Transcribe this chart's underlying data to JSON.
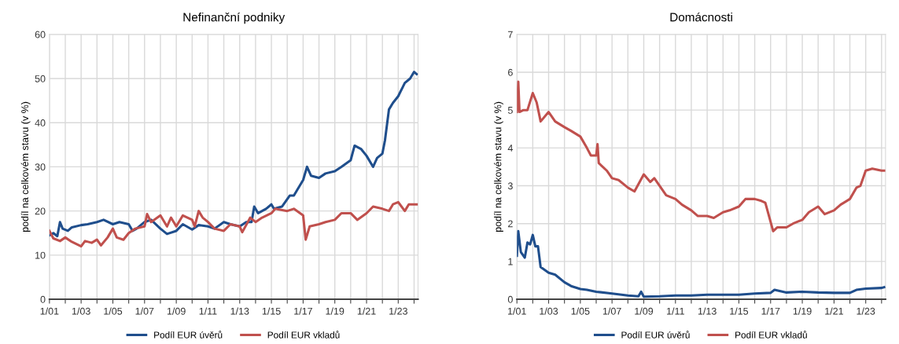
{
  "chart_data": [
    {
      "type": "line",
      "title": "Nefinanční podniky",
      "ylabel": "podíl na celkovém stavu (v %)",
      "legend": "bottom",
      "grid": true,
      "line_style": "solid",
      "xlim": [
        "2001-01",
        "2024-04"
      ],
      "ylim": [
        0,
        60
      ],
      "yticks": [
        0,
        10,
        20,
        30,
        40,
        50,
        60
      ],
      "xticks": [
        {
          "value": "2001-01",
          "label": "1/01"
        },
        {
          "value": "2002-01",
          "label": null
        },
        {
          "value": "2003-01",
          "label": "1/03"
        },
        {
          "value": "2004-01",
          "label": null
        },
        {
          "value": "2005-01",
          "label": "1/05"
        },
        {
          "value": "2006-01",
          "label": null
        },
        {
          "value": "2007-01",
          "label": "1/07"
        },
        {
          "value": "2008-01",
          "label": null
        },
        {
          "value": "2009-01",
          "label": "1/09"
        },
        {
          "value": "2010-01",
          "label": null
        },
        {
          "value": "2011-01",
          "label": "1/11"
        },
        {
          "value": "2012-01",
          "label": null
        },
        {
          "value": "2013-01",
          "label": "1/13"
        },
        {
          "value": "2014-01",
          "label": null
        },
        {
          "value": "2015-01",
          "label": "1/15"
        },
        {
          "value": "2016-01",
          "label": null
        },
        {
          "value": "2017-01",
          "label": "1/17"
        },
        {
          "value": "2018-01",
          "label": null
        },
        {
          "value": "2019-01",
          "label": "1/19"
        },
        {
          "value": "2020-01",
          "label": null
        },
        {
          "value": "2021-01",
          "label": "1/21"
        },
        {
          "value": "2022-01",
          "label": null
        },
        {
          "value": "2023-01",
          "label": "1/23"
        },
        {
          "value": "2024-01",
          "label": null
        }
      ],
      "series": [
        {
          "name": "Podíl EUR úvěrů",
          "color": "#1f4e8c",
          "x": [
            "2001-01",
            "2001-04",
            "2001-07",
            "2001-09",
            "2001-11",
            "2002-03",
            "2002-06",
            "2003-01",
            "2003-06",
            "2004-01",
            "2004-06",
            "2005-01",
            "2005-06",
            "2006-01",
            "2006-04",
            "2006-07",
            "2007-01",
            "2007-06",
            "2008-01",
            "2008-06",
            "2009-01",
            "2009-06",
            "2010-01",
            "2010-06",
            "2011-01",
            "2011-06",
            "2012-01",
            "2012-06",
            "2013-01",
            "2013-06",
            "2013-10",
            "2013-12",
            "2014-03",
            "2014-09",
            "2015-01",
            "2015-03",
            "2015-09",
            "2016-03",
            "2016-06",
            "2016-09",
            "2017-01",
            "2017-04",
            "2017-07",
            "2018-01",
            "2018-06",
            "2019-01",
            "2019-06",
            "2020-01",
            "2020-04",
            "2020-09",
            "2021-01",
            "2021-06",
            "2021-09",
            "2022-01",
            "2022-03",
            "2022-06",
            "2022-09",
            "2023-01",
            "2023-06",
            "2023-10",
            "2024-01",
            "2024-03"
          ],
          "values": [
            14.5,
            15,
            14.3,
            17.5,
            16,
            15.5,
            16.3,
            16.8,
            17,
            17.5,
            18,
            17,
            17.5,
            17,
            15.5,
            16,
            17.5,
            18,
            16,
            14.8,
            15.5,
            17,
            15.8,
            16.8,
            16.5,
            16,
            17.5,
            17,
            16.5,
            17.5,
            17.5,
            21,
            19.5,
            20.5,
            21.5,
            20.5,
            21,
            23.5,
            23.5,
            25,
            27,
            30,
            28,
            27.5,
            28.5,
            29,
            30,
            31.5,
            34.8,
            34,
            32.5,
            30,
            32,
            33,
            36,
            43,
            44.5,
            46,
            49,
            50,
            51.5,
            51
          ]
        },
        {
          "name": "Podíl EUR vkladů",
          "color": "#c0504d",
          "x": [
            "2001-01",
            "2001-04",
            "2001-09",
            "2002-01",
            "2002-06",
            "2003-01",
            "2003-04",
            "2003-09",
            "2004-01",
            "2004-04",
            "2004-09",
            "2005-01",
            "2005-04",
            "2005-09",
            "2006-01",
            "2006-06",
            "2007-01",
            "2007-03",
            "2007-06",
            "2008-01",
            "2008-06",
            "2008-09",
            "2009-01",
            "2009-06",
            "2010-01",
            "2010-03",
            "2010-06",
            "2010-09",
            "2011-01",
            "2011-06",
            "2012-01",
            "2012-06",
            "2013-01",
            "2013-03",
            "2013-09",
            "2014-01",
            "2014-06",
            "2015-01",
            "2015-04",
            "2016-01",
            "2016-06",
            "2017-01",
            "2017-03",
            "2017-06",
            "2018-01",
            "2018-06",
            "2019-01",
            "2019-06",
            "2020-01",
            "2020-06",
            "2021-01",
            "2021-06",
            "2022-01",
            "2022-06",
            "2022-09",
            "2023-01",
            "2023-06",
            "2023-09",
            "2024-01",
            "2024-03"
          ],
          "values": [
            15.5,
            13.8,
            13.2,
            14,
            13,
            12,
            13.2,
            12.8,
            13.5,
            12.2,
            14,
            16,
            14,
            13.5,
            15,
            16,
            16.5,
            19.3,
            17.5,
            19,
            16.5,
            18.5,
            16.5,
            19,
            18,
            16.5,
            20,
            18.5,
            17.5,
            16,
            15.5,
            17,
            16.5,
            15.2,
            18.5,
            17.5,
            18.5,
            19.5,
            20.5,
            20,
            20.5,
            19,
            13.5,
            16.5,
            17,
            17.5,
            18,
            19.5,
            19.5,
            18,
            19.5,
            21,
            20.5,
            20,
            21.5,
            22,
            20,
            21.5,
            21.5,
            21.5
          ]
        }
      ]
    },
    {
      "type": "line",
      "title": "Domácnosti",
      "ylabel": "podíl na celkovém stavu (v %)",
      "legend": "bottom",
      "grid": true,
      "line_style": "solid",
      "xlim": [
        "2001-01",
        "2024-04"
      ],
      "ylim": [
        0,
        7
      ],
      "yticks": [
        0,
        1,
        2,
        3,
        4,
        5,
        6,
        7
      ],
      "xticks": [
        {
          "value": "2001-01",
          "label": "1/01"
        },
        {
          "value": "2002-01",
          "label": null
        },
        {
          "value": "2003-01",
          "label": "1/03"
        },
        {
          "value": "2004-01",
          "label": null
        },
        {
          "value": "2005-01",
          "label": "1/05"
        },
        {
          "value": "2006-01",
          "label": null
        },
        {
          "value": "2007-01",
          "label": "1/07"
        },
        {
          "value": "2008-01",
          "label": null
        },
        {
          "value": "2009-01",
          "label": "1/09"
        },
        {
          "value": "2010-01",
          "label": null
        },
        {
          "value": "2011-01",
          "label": "1/11"
        },
        {
          "value": "2012-01",
          "label": null
        },
        {
          "value": "2013-01",
          "label": "1/13"
        },
        {
          "value": "2014-01",
          "label": null
        },
        {
          "value": "2015-01",
          "label": "1/15"
        },
        {
          "value": "2016-01",
          "label": null
        },
        {
          "value": "2017-01",
          "label": "1/17"
        },
        {
          "value": "2018-01",
          "label": null
        },
        {
          "value": "2019-01",
          "label": "1/19"
        },
        {
          "value": "2020-01",
          "label": null
        },
        {
          "value": "2021-01",
          "label": "1/21"
        },
        {
          "value": "2022-01",
          "label": null
        },
        {
          "value": "2023-01",
          "label": "1/23"
        },
        {
          "value": "2024-01",
          "label": null
        }
      ],
      "series": [
        {
          "name": "Podíl EUR úvěrů",
          "color": "#1f4e8c",
          "x": [
            "2001-01",
            "2001-02",
            "2001-04",
            "2001-07",
            "2001-09",
            "2001-11",
            "2002-01",
            "2002-03",
            "2002-05",
            "2002-07",
            "2003-01",
            "2003-06",
            "2004-01",
            "2004-06",
            "2005-01",
            "2005-06",
            "2006-01",
            "2007-01",
            "2008-01",
            "2008-09",
            "2008-11",
            "2009-01",
            "2010-01",
            "2011-01",
            "2012-01",
            "2013-01",
            "2014-01",
            "2015-01",
            "2016-01",
            "2017-01",
            "2017-04",
            "2018-01",
            "2019-01",
            "2020-01",
            "2021-01",
            "2022-01",
            "2022-06",
            "2023-01",
            "2024-01",
            "2024-03"
          ],
          "values": [
            1.15,
            1.8,
            1.25,
            1.1,
            1.5,
            1.45,
            1.7,
            1.4,
            1.4,
            0.85,
            0.7,
            0.65,
            0.45,
            0.35,
            0.27,
            0.25,
            0.2,
            0.15,
            0.1,
            0.08,
            0.2,
            0.07,
            0.08,
            0.1,
            0.1,
            0.12,
            0.12,
            0.12,
            0.15,
            0.17,
            0.25,
            0.18,
            0.2,
            0.18,
            0.17,
            0.17,
            0.25,
            0.28,
            0.3,
            0.32
          ]
        },
        {
          "name": "Podíl EUR vkladů",
          "color": "#c0504d",
          "x": [
            "2001-01",
            "2001-02",
            "2001-03",
            "2001-06",
            "2001-09",
            "2002-01",
            "2002-04",
            "2002-07",
            "2003-01",
            "2003-06",
            "2004-01",
            "2004-06",
            "2005-01",
            "2005-06",
            "2005-09",
            "2006-01",
            "2006-02",
            "2006-03",
            "2006-09",
            "2007-01",
            "2007-06",
            "2008-01",
            "2008-06",
            "2009-01",
            "2009-06",
            "2009-09",
            "2010-06",
            "2011-01",
            "2011-06",
            "2012-01",
            "2012-06",
            "2013-01",
            "2013-06",
            "2014-01",
            "2014-06",
            "2015-01",
            "2015-06",
            "2016-01",
            "2016-06",
            "2016-09",
            "2017-03",
            "2017-06",
            "2018-01",
            "2018-06",
            "2019-01",
            "2019-06",
            "2020-01",
            "2020-06",
            "2021-01",
            "2021-06",
            "2022-01",
            "2022-06",
            "2022-09",
            "2023-01",
            "2023-06",
            "2024-01",
            "2024-03"
          ],
          "values": [
            4.95,
            5.75,
            4.95,
            5.0,
            5.0,
            5.45,
            5.2,
            4.7,
            4.95,
            4.7,
            4.55,
            4.45,
            4.3,
            4.0,
            3.8,
            3.8,
            4.1,
            3.6,
            3.4,
            3.2,
            3.15,
            2.95,
            2.85,
            3.3,
            3.1,
            3.2,
            2.75,
            2.65,
            2.5,
            2.35,
            2.2,
            2.2,
            2.15,
            2.3,
            2.35,
            2.45,
            2.65,
            2.65,
            2.6,
            2.55,
            1.8,
            1.9,
            1.9,
            2.0,
            2.1,
            2.3,
            2.45,
            2.25,
            2.35,
            2.5,
            2.65,
            2.95,
            3.0,
            3.4,
            3.45,
            3.4,
            3.4
          ]
        }
      ]
    }
  ]
}
